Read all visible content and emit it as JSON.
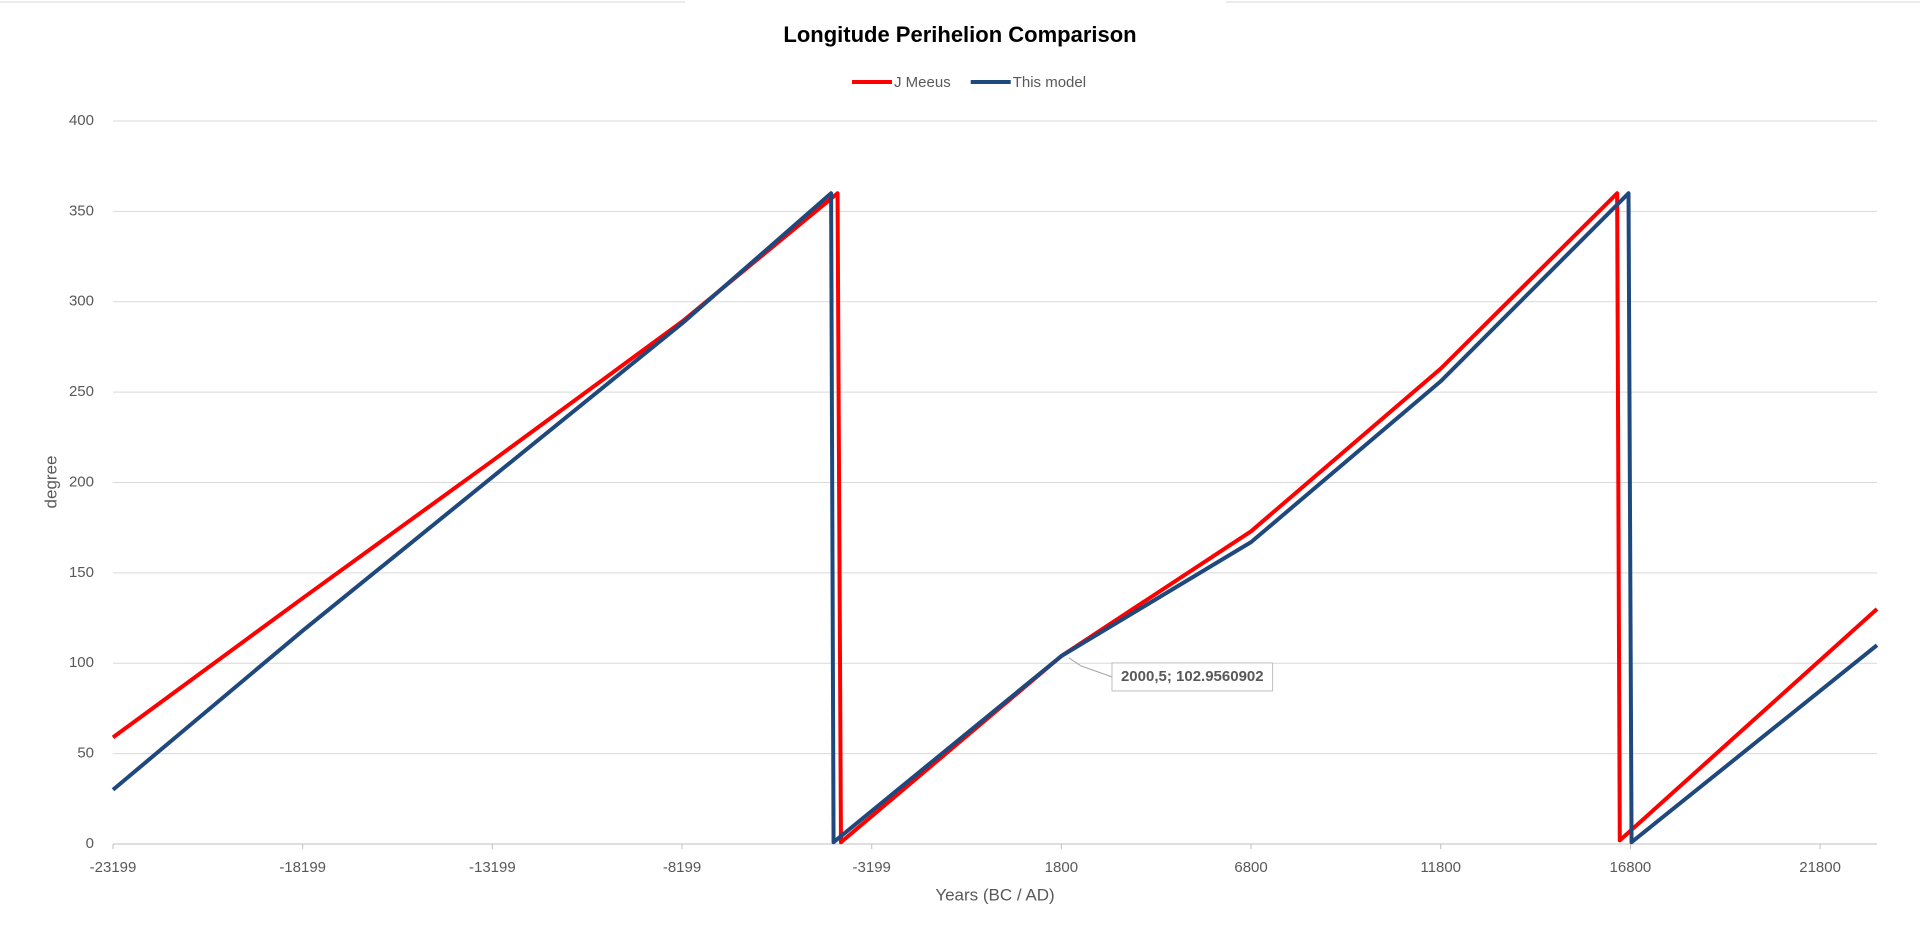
{
  "chart_data": {
    "type": "line",
    "title": "Longitude Perihelion Comparison",
    "x_label": "Years (BC / AD)",
    "y_label": "degree",
    "xlim": [
      -23199,
      23300
    ],
    "ylim": [
      0,
      400
    ],
    "xticks": [
      -23199,
      -18199,
      -13199,
      -8199,
      -3199,
      1800,
      6800,
      11800,
      16800,
      21800
    ],
    "yticks": [
      0,
      50,
      100,
      150,
      200,
      250,
      300,
      350,
      400
    ],
    "grid": true,
    "legend": "top",
    "series": [
      {
        "name": "J Meeus",
        "color": "#ff0000",
        "x": [
          -23199,
          -18199,
          -13199,
          -8199,
          -4100,
          -4010,
          1800,
          6800,
          11800,
          16450,
          16520,
          23300
        ],
        "values": [
          59,
          136,
          212,
          289,
          360,
          1,
          104,
          173,
          263,
          360,
          2,
          130
        ]
      },
      {
        "name": "This model",
        "color": "#1f497d",
        "x": [
          -23199,
          -18199,
          -13199,
          -8199,
          -4270,
          -4205,
          1800,
          6800,
          11800,
          16750,
          16830,
          23300
        ],
        "values": [
          30,
          118,
          203,
          288,
          360,
          1,
          104,
          167,
          256,
          360,
          1,
          110
        ]
      }
    ],
    "annotation": {
      "text": "2000,5; 102.9560902",
      "x": 2000.5,
      "y": 102.9560902
    }
  }
}
